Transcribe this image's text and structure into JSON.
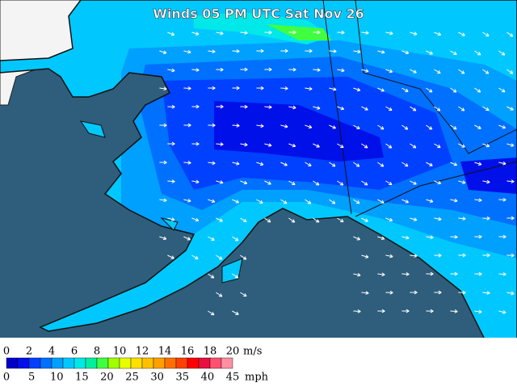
{
  "title": "Winds 05 PM UTC Sat Nov 26",
  "legend": {
    "upper_labels": [
      "0",
      "2",
      "4",
      "6",
      "8",
      "10",
      "12",
      "14",
      "16",
      "18",
      "20"
    ],
    "upper_unit": "m/s",
    "lower_labels": [
      "0",
      "5",
      "10",
      "15",
      "20",
      "25",
      "30",
      "35",
      "40",
      "45"
    ],
    "lower_unit": "mph",
    "colors": [
      "#0000c8",
      "#0010e8",
      "#0040ff",
      "#0070ff",
      "#00a0ff",
      "#00c8ff",
      "#00e8e8",
      "#00f0a0",
      "#40ff40",
      "#a0ff00",
      "#e8ff00",
      "#ffe000",
      "#ffc000",
      "#ffa000",
      "#ff7000",
      "#ff4000",
      "#ff0000",
      "#e81040",
      "#ff5070",
      "#ff90a0"
    ]
  }
}
